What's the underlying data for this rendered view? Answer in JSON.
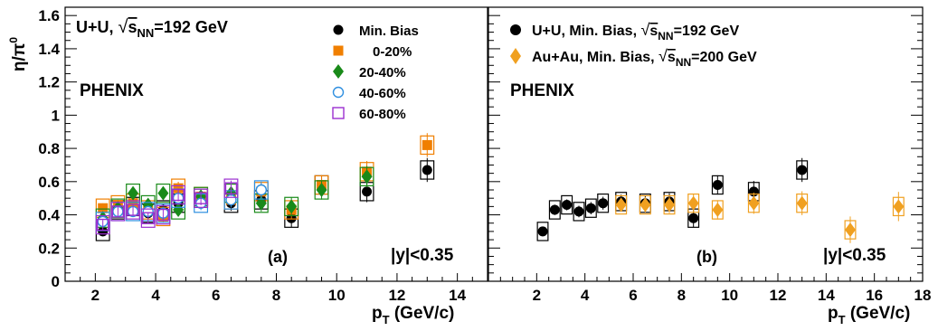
{
  "y_axis_label": {
    "main": "η/π",
    "sup": "0"
  },
  "x_axis_label": {
    "main": "p",
    "sub": "T",
    "rest": " (GeV/c)"
  },
  "chart_data": [
    {
      "type": "scatter",
      "panel_label": "(a)",
      "experiment": "PHENIX",
      "rapidity_label": "|y|<0.35",
      "system_label": {
        "pre": "U+U,  ",
        "sqrt": "√",
        "s": "s",
        "sub": "NN",
        "post": "=192 GeV"
      },
      "xlim": [
        1,
        15
      ],
      "ylim": [
        0,
        1.65
      ],
      "xticks": [
        2,
        4,
        6,
        8,
        10,
        12,
        14
      ],
      "yticks": [
        0,
        0.2,
        0.4,
        0.6,
        0.8,
        1,
        1.2,
        1.4,
        1.6
      ],
      "grid": false,
      "legend_position": "top-center",
      "series": [
        {
          "name": "Min. Bias",
          "color": "#000000",
          "marker": "circle-filled",
          "points": [
            [
              2.25,
              0.3
            ],
            [
              2.75,
              0.43
            ],
            [
              3.25,
              0.45
            ],
            [
              3.75,
              0.41
            ],
            [
              4.25,
              0.43
            ],
            [
              4.75,
              0.47
            ],
            [
              5.5,
              0.5
            ],
            [
              6.5,
              0.47
            ],
            [
              7.5,
              0.49
            ],
            [
              8.5,
              0.38
            ],
            [
              9.5,
              0.58
            ],
            [
              11,
              0.54
            ],
            [
              13,
              0.67
            ]
          ]
        },
        {
          "name": "0-20%",
          "color": "#f07f00",
          "marker": "square-filled",
          "points": [
            [
              2.25,
              0.44
            ],
            [
              2.75,
              0.46
            ],
            [
              3.25,
              0.47
            ],
            [
              3.75,
              0.43
            ],
            [
              4.25,
              0.39
            ],
            [
              4.75,
              0.56
            ],
            [
              5.5,
              0.51
            ],
            [
              6.5,
              0.49
            ],
            [
              7.5,
              0.54
            ],
            [
              8.5,
              0.43
            ],
            [
              9.5,
              0.58
            ],
            [
              11,
              0.66
            ],
            [
              13,
              0.82
            ]
          ]
        },
        {
          "name": "20-40%",
          "color": "#198a19",
          "marker": "diamond-filled",
          "points": [
            [
              2.25,
              0.38
            ],
            [
              2.75,
              0.44
            ],
            [
              3.25,
              0.53
            ],
            [
              3.75,
              0.46
            ],
            [
              4.25,
              0.53
            ],
            [
              4.75,
              0.43
            ],
            [
              5.5,
              0.51
            ],
            [
              6.5,
              0.53
            ],
            [
              7.5,
              0.47
            ],
            [
              8.5,
              0.45
            ],
            [
              9.5,
              0.55
            ],
            [
              11,
              0.63
            ]
          ]
        },
        {
          "name": "40-60%",
          "color": "#2f8fe0",
          "marker": "circle-open",
          "points": [
            [
              2.25,
              0.36
            ],
            [
              2.75,
              0.42
            ],
            [
              3.25,
              0.42
            ],
            [
              3.75,
              0.42
            ],
            [
              4.25,
              0.41
            ],
            [
              4.75,
              0.5
            ],
            [
              5.5,
              0.47
            ],
            [
              6.5,
              0.49
            ],
            [
              7.5,
              0.55
            ]
          ]
        },
        {
          "name": "60-80%",
          "color": "#9b2fd0",
          "marker": "square-open",
          "points": [
            [
              2.25,
              0.34
            ],
            [
              2.75,
              0.42
            ],
            [
              3.25,
              0.43
            ],
            [
              3.75,
              0.38
            ],
            [
              4.25,
              0.4
            ],
            [
              4.75,
              0.52
            ],
            [
              5.5,
              0.5
            ],
            [
              6.5,
              0.56
            ]
          ]
        }
      ]
    },
    {
      "type": "scatter",
      "panel_label": "(b)",
      "experiment": "PHENIX",
      "rapidity_label": "|y|<0.35",
      "xlim": [
        0,
        18
      ],
      "ylim": [
        0,
        1.65
      ],
      "xticks": [
        2,
        4,
        6,
        8,
        10,
        12,
        14,
        16,
        18
      ],
      "grid": false,
      "legend_position": "top-left",
      "series": [
        {
          "label": {
            "pre": "U+U, Min. Bias,  ",
            "sqrt": "√",
            "s": "s",
            "sub": "NN",
            "post": "=192 GeV"
          },
          "color": "#000000",
          "marker": "circle-filled",
          "points": [
            [
              2.25,
              0.3
            ],
            [
              2.75,
              0.43
            ],
            [
              3.25,
              0.46
            ],
            [
              3.75,
              0.42
            ],
            [
              4.25,
              0.44
            ],
            [
              4.75,
              0.47
            ],
            [
              5.5,
              0.48
            ],
            [
              6.5,
              0.47
            ],
            [
              7.5,
              0.48
            ],
            [
              8.5,
              0.38
            ],
            [
              9.5,
              0.58
            ],
            [
              11,
              0.54
            ],
            [
              13,
              0.67
            ]
          ]
        },
        {
          "label": {
            "pre": "Au+Au, Min. Bias,  ",
            "sqrt": "√",
            "s": "s",
            "sub": "NN",
            "post": "=200 GeV"
          },
          "color": "#f0a020",
          "marker": "diamond-filled",
          "points": [
            [
              5.5,
              0.46
            ],
            [
              6.5,
              0.46
            ],
            [
              7.5,
              0.46
            ],
            [
              8.5,
              0.47
            ],
            [
              9.5,
              0.43
            ],
            [
              11,
              0.47
            ],
            [
              13,
              0.47
            ],
            [
              15,
              0.31
            ],
            [
              17,
              0.45
            ]
          ]
        }
      ]
    }
  ]
}
